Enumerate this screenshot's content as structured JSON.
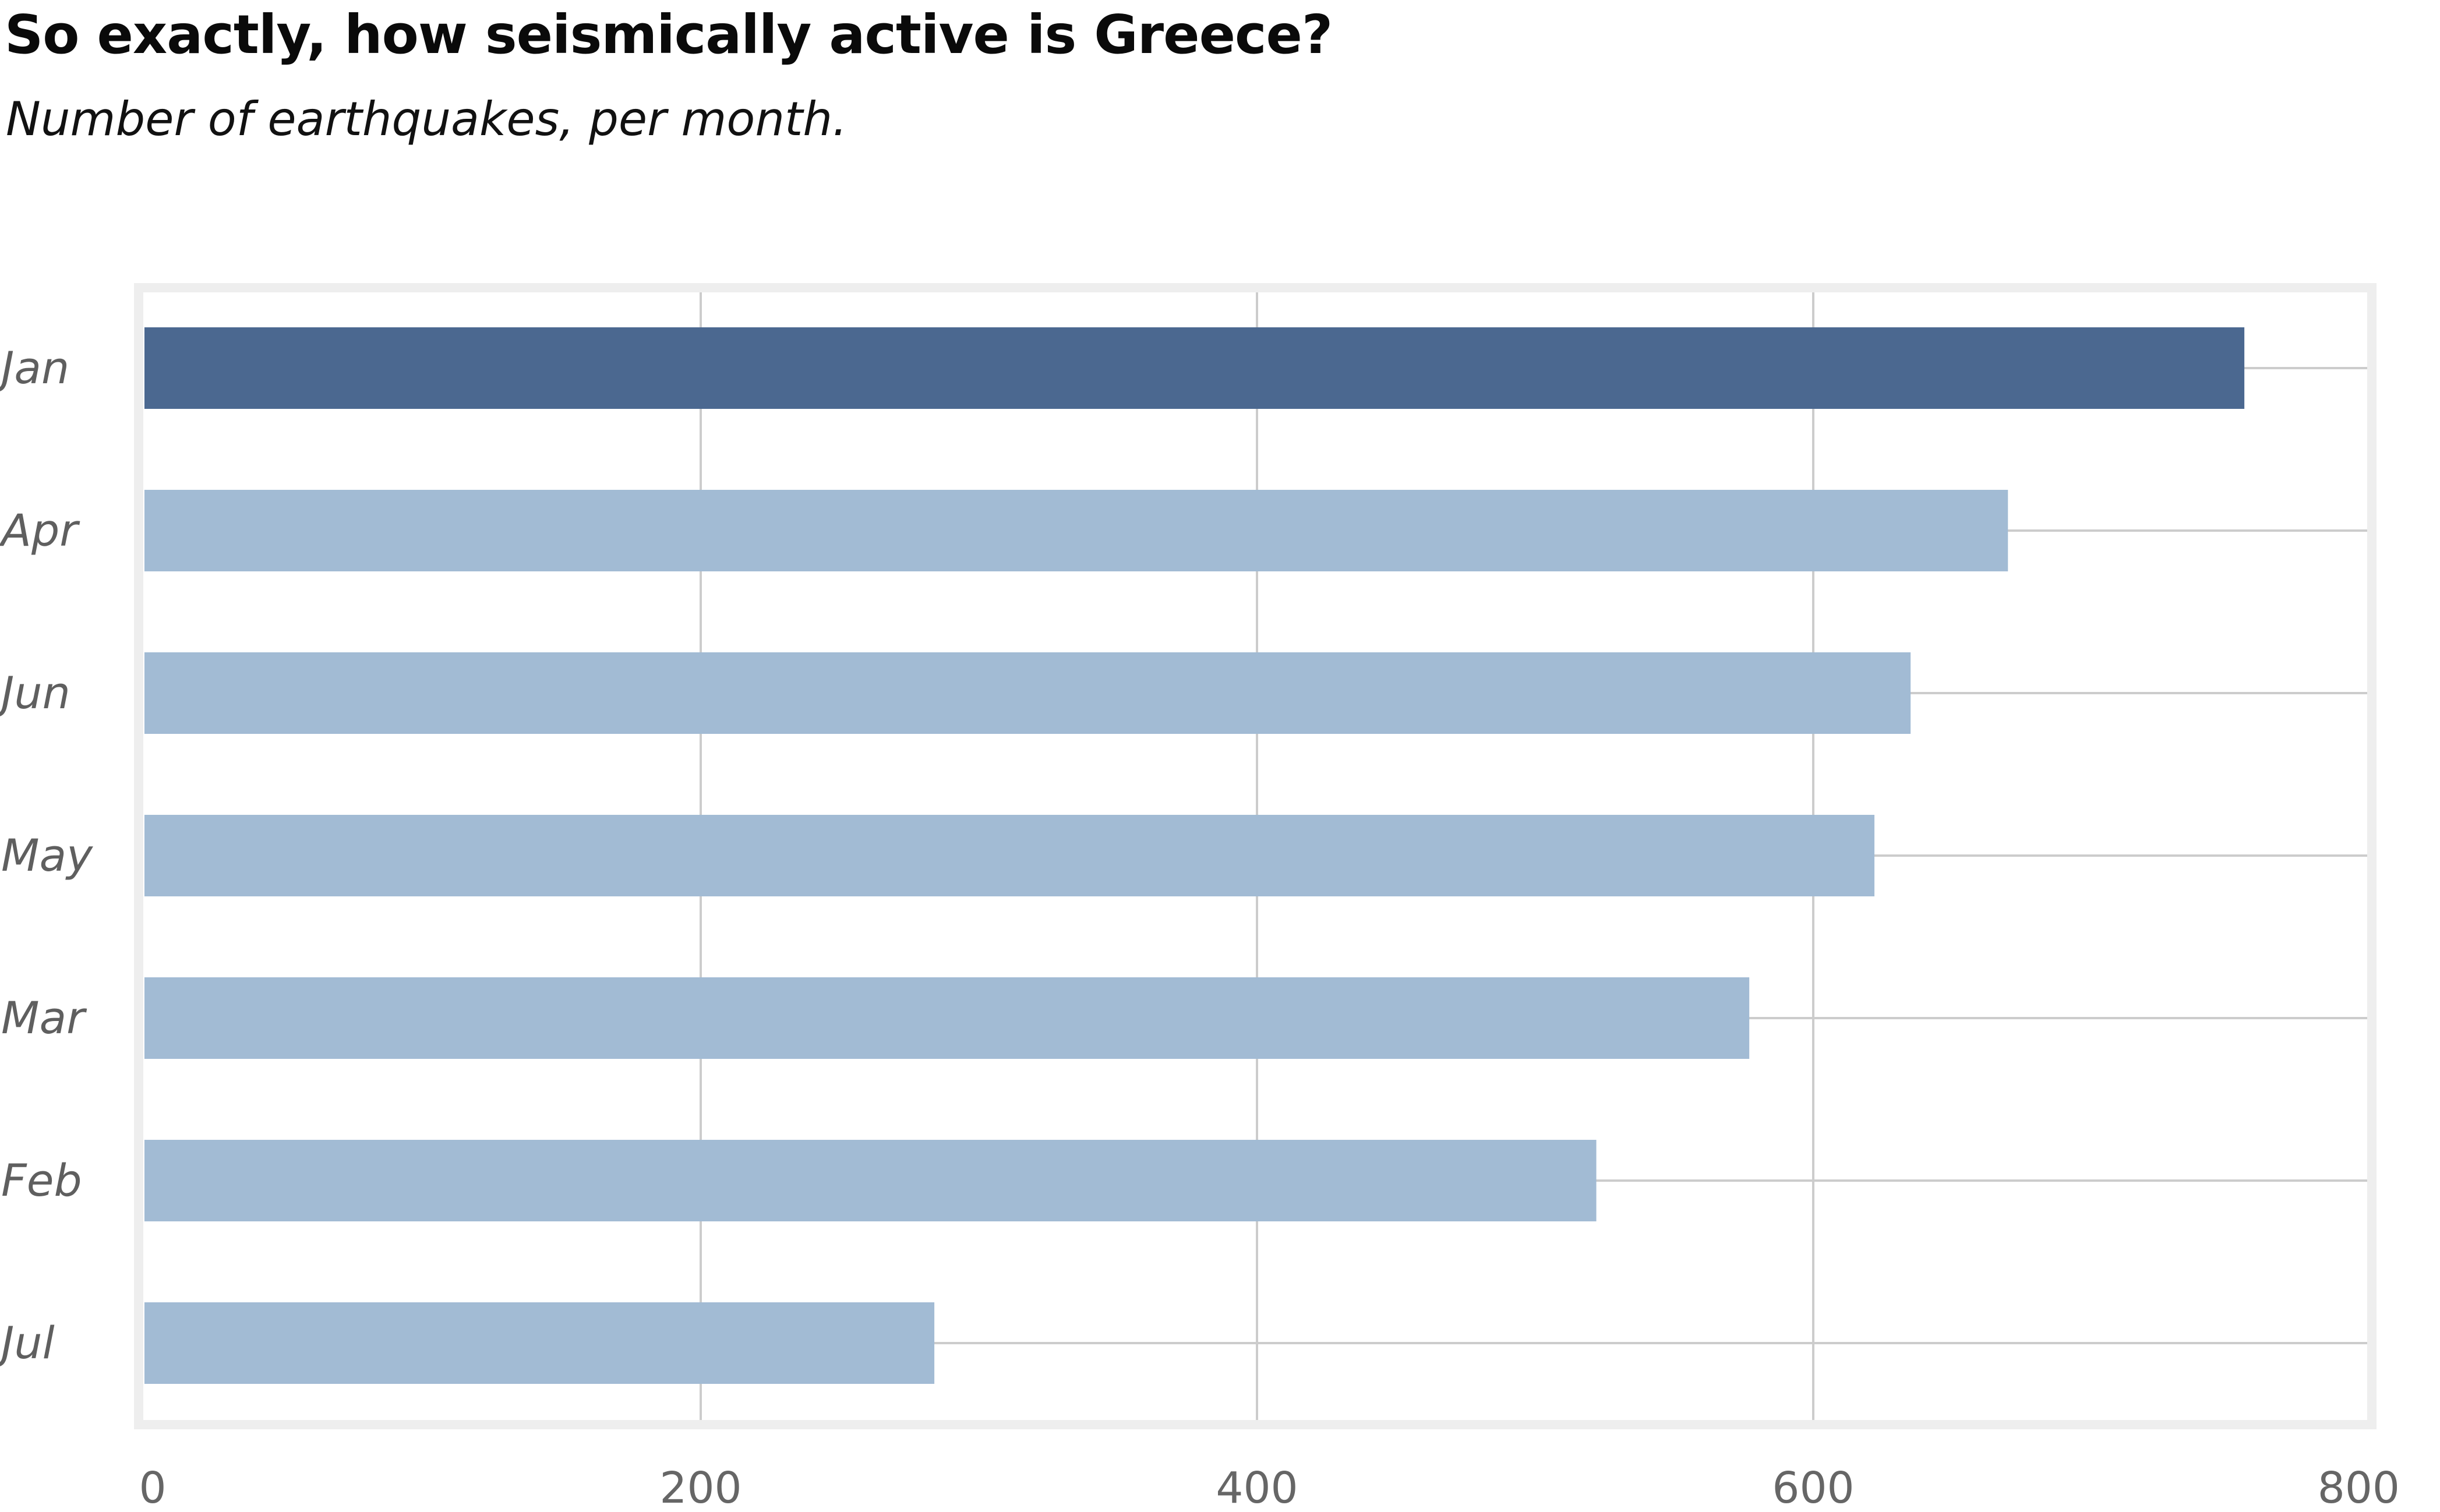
{
  "title": "So exactly, how seismically active is Greece?",
  "subtitle": "Number of earthquakes, per month.",
  "colors": {
    "highlight_bar": "#4b6890",
    "bar": "#a2bbd4",
    "grid": "#cccccc",
    "frame": "#eeeeee",
    "category_text": "#5f5f5f",
    "tick_text": "#666666"
  },
  "chart_data": {
    "type": "bar",
    "orientation": "horizontal",
    "categories": [
      "Jan",
      "Apr",
      "Jun",
      "May",
      "Mar",
      "Feb",
      "Jul"
    ],
    "values": [
      755,
      670,
      635,
      622,
      577,
      522,
      284
    ],
    "highlight": "Jan",
    "xlim": [
      0,
      800
    ],
    "xticks": [
      "0",
      "200",
      "400",
      "600",
      "800"
    ],
    "grid": true,
    "xlabel": "",
    "ylabel": ""
  }
}
